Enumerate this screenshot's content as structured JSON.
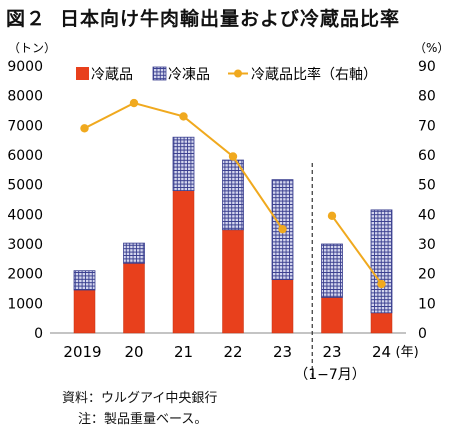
{
  "title": {
    "number": "図２",
    "text": "日本向け牛肉輸出量および冷蔵品比率"
  },
  "chart_data": {
    "type": "bar",
    "stacked": true,
    "y_left_unit": "（トン）",
    "y_right_unit": "（%）",
    "ylim_left": [
      0,
      9000
    ],
    "ylim_right": [
      0,
      90
    ],
    "y_left_ticks": [
      "0",
      "1000",
      "2000",
      "3000",
      "4000",
      "5000",
      "6000",
      "7000",
      "8000",
      "9000"
    ],
    "y_right_ticks": [
      "0",
      "10",
      "20",
      "30",
      "40",
      "50",
      "60",
      "70",
      "80",
      "90"
    ],
    "categories": [
      "2019",
      "20",
      "21",
      "22",
      "23",
      "23",
      "24"
    ],
    "category_sublabels": [
      "",
      "",
      "",
      "",
      "",
      "（1−7月）",
      ""
    ],
    "x_unit": "(年)",
    "series": [
      {
        "name": "冷蔵品",
        "type": "bar",
        "axis": "left",
        "color": "#e8401c",
        "values": [
          1450,
          2350,
          4800,
          3480,
          1800,
          1200,
          680
        ]
      },
      {
        "name": "冷凍品",
        "type": "bar",
        "axis": "left",
        "color": "#c9ccea",
        "pattern": "grid-navy",
        "values": [
          650,
          680,
          1800,
          2350,
          3370,
          1800,
          3470
        ]
      },
      {
        "name": "冷蔵品比率（右軸）",
        "type": "line",
        "axis": "right",
        "color": "#f0a91e",
        "values": [
          69,
          77.5,
          73,
          59.5,
          35,
          39.5,
          16.5
        ]
      }
    ],
    "divider_after_index": 4,
    "legend_position": "top"
  },
  "notes": {
    "source": "資料：ウルグアイ中央銀行",
    "note": "注：製品重量ベース。"
  }
}
